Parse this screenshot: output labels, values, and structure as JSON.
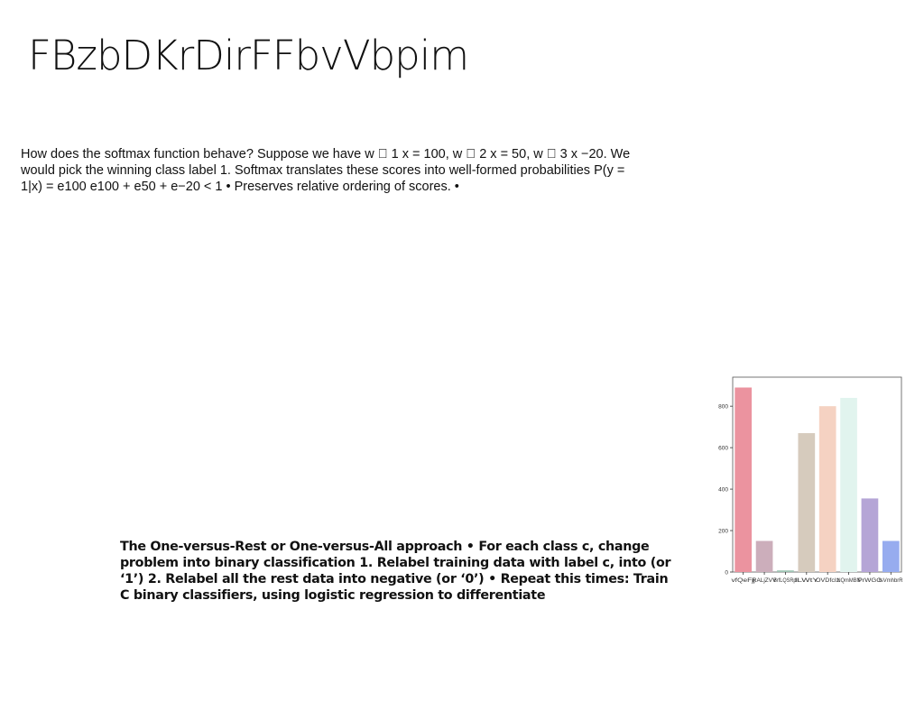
{
  "slide": {
    "title": "FBzbDKrDirFFbvVbpim",
    "paragraph1": "How does the softmax function behave? Suppose we have w ⃞ 1 x = 100, w ⃞ 2 x = 50, w ⃞ 3 x −20. We would pick the winning class label 1. Softmax translates these scores into well-formed probabilities P(y = 1|x) = e100 e100 + e50 + e−20 < 1 • Preserves relative ordering of scores. •",
    "paragraph2": "The One-versus-Rest or One-versus-All approach • For each class c, change problem into binary classification 1. Relabel training data with label c, into (or ‘1’) 2. Relabel all the rest data into negative (or ‘0’) • Repeat this times: Train C binary classifiers, using logistic regression to differentiate"
  },
  "chart_data": {
    "type": "bar",
    "categories": [
      "vfQeFjj",
      "RALjZVV",
      "BrfLQSRpl",
      "ILWtY",
      "OVDfcIz",
      "NQmMBN",
      "PrWGG",
      "tsVmhbrR"
    ],
    "values": [
      890,
      150,
      8,
      670,
      800,
      840,
      355,
      150
    ],
    "colors": [
      "#eb939f",
      "#ccaebb",
      "#9fc4b4",
      "#d6cbbd",
      "#f5d2c2",
      "#e1f4ee",
      "#b5a5d6",
      "#97acef"
    ],
    "yticks": [
      0,
      200,
      400,
      600,
      800
    ],
    "ylim": [
      0,
      940
    ],
    "grid": false,
    "xlabel": "",
    "ylabel": ""
  }
}
